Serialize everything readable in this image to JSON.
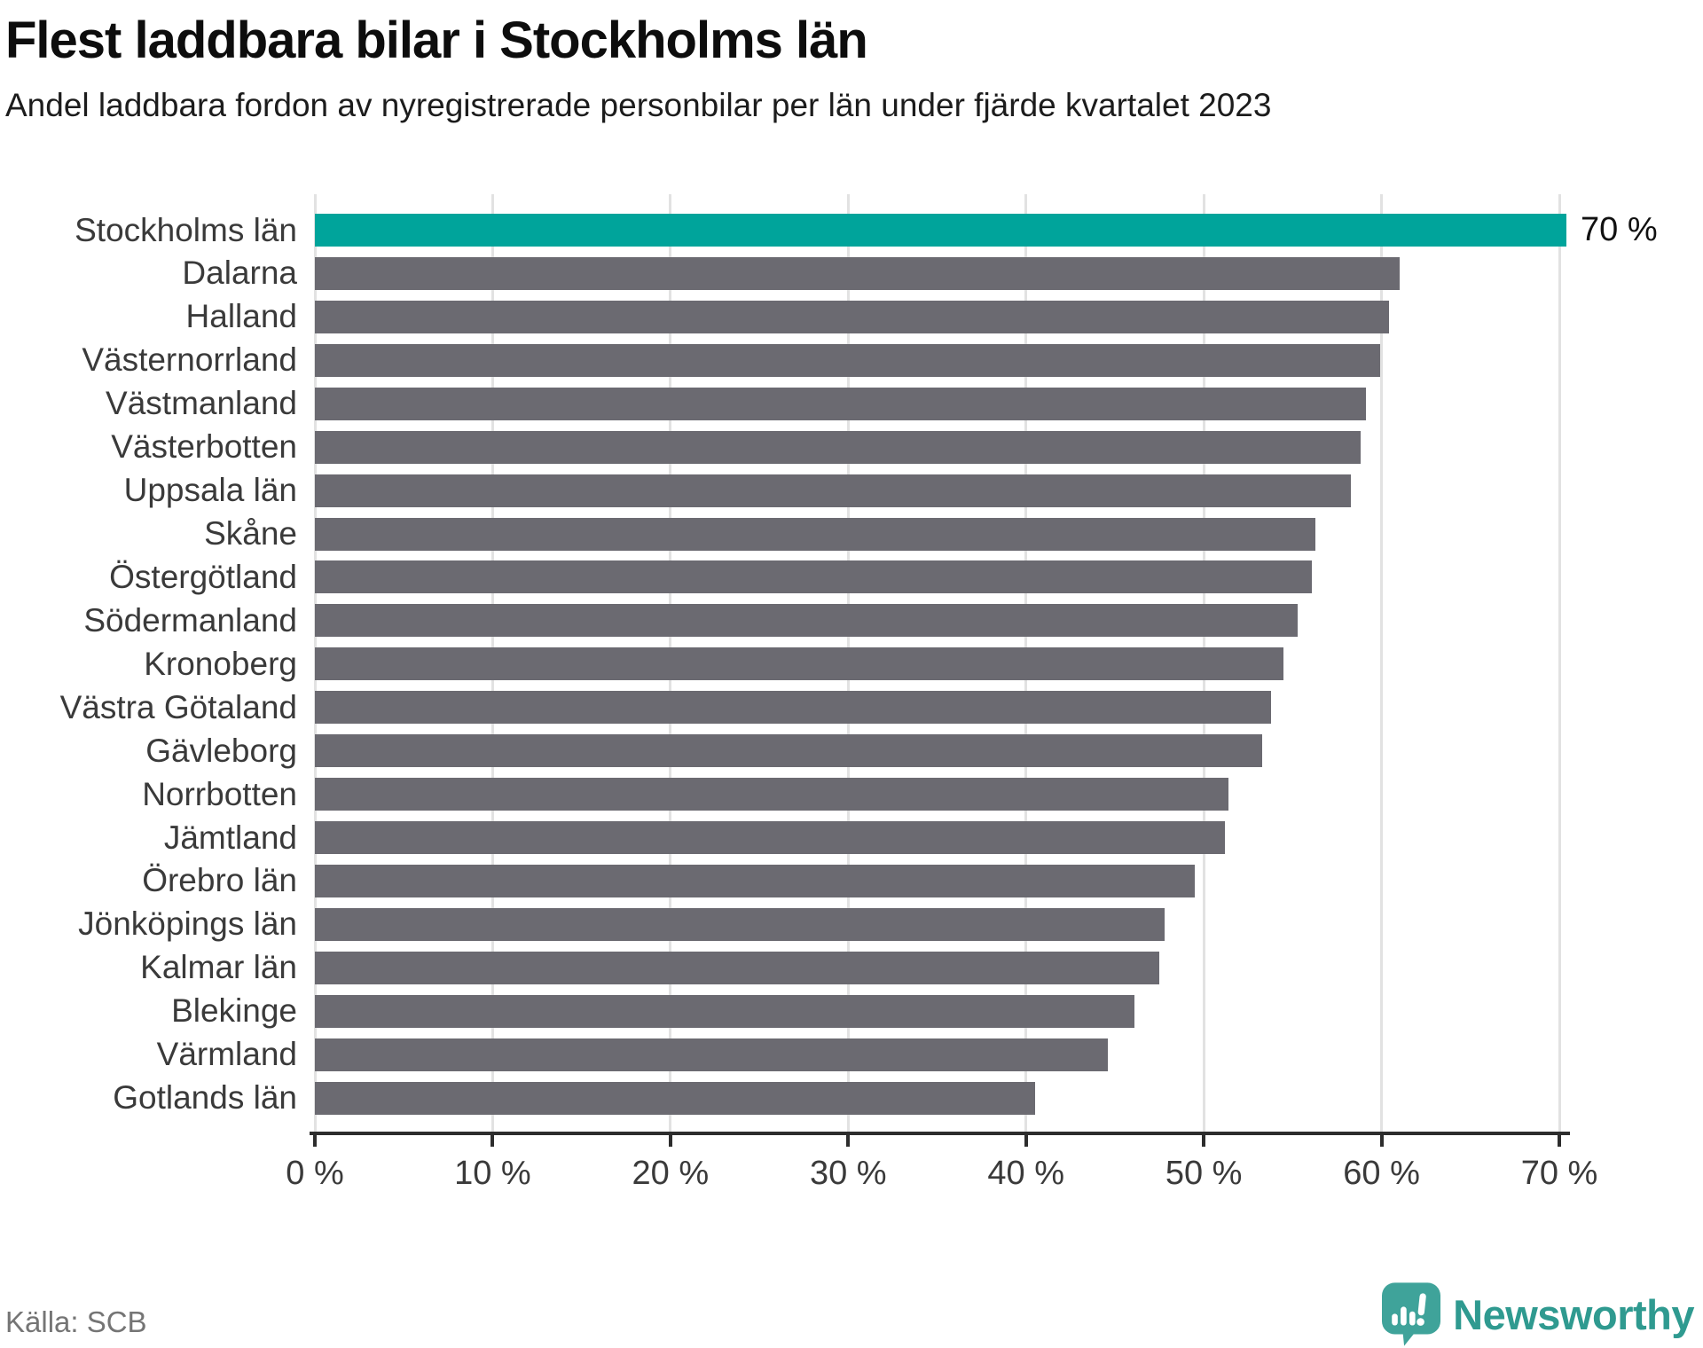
{
  "header": {
    "title": "Flest laddbara bilar i Stockholms län",
    "subtitle": "Andel laddbara fordon av nyregistrerade personbilar per län under fjärde kvartalet 2023"
  },
  "chart_data": {
    "type": "bar",
    "orientation": "horizontal",
    "title": "Flest laddbara bilar i Stockholms län",
    "subtitle": "Andel laddbara fordon av nyregistrerade personbilar per län under fjärde kvartalet 2023",
    "categories": [
      "Stockholms län",
      "Dalarna",
      "Halland",
      "Västernorrland",
      "Västmanland",
      "Västerbotten",
      "Uppsala län",
      "Skåne",
      "Östergötland",
      "Södermanland",
      "Kronoberg",
      "Västra Götaland",
      "Gävleborg",
      "Norrbotten",
      "Jämtland",
      "Örebro län",
      "Jönköpings län",
      "Kalmar län",
      "Blekinge",
      "Värmland",
      "Gotlands län"
    ],
    "values": [
      70.4,
      61.0,
      60.4,
      59.9,
      59.1,
      58.8,
      58.3,
      56.3,
      56.1,
      55.3,
      54.5,
      53.8,
      53.3,
      51.4,
      51.2,
      49.5,
      47.8,
      47.5,
      46.1,
      44.6,
      40.5
    ],
    "value_suffix": "%",
    "highlight_index": 0,
    "data_label": {
      "index": 0,
      "text": "70 %"
    },
    "xlim": [
      0,
      70
    ],
    "x_tick_step": 10,
    "x_ticks": [
      "0 %",
      "10 %",
      "20 %",
      "30 %",
      "40 %",
      "50 %",
      "60 %",
      "70 %"
    ],
    "grid": "vertical",
    "legend": "none",
    "colors": {
      "highlight": "#00a49b",
      "default": "#6b6a71"
    }
  },
  "footer": {
    "source": "Källa: SCB",
    "logo_text": "Newsworthy",
    "logo_icon": "newsworthy-speech-bubble-chart-icon",
    "logo_icon_color": "#3fa39a"
  }
}
